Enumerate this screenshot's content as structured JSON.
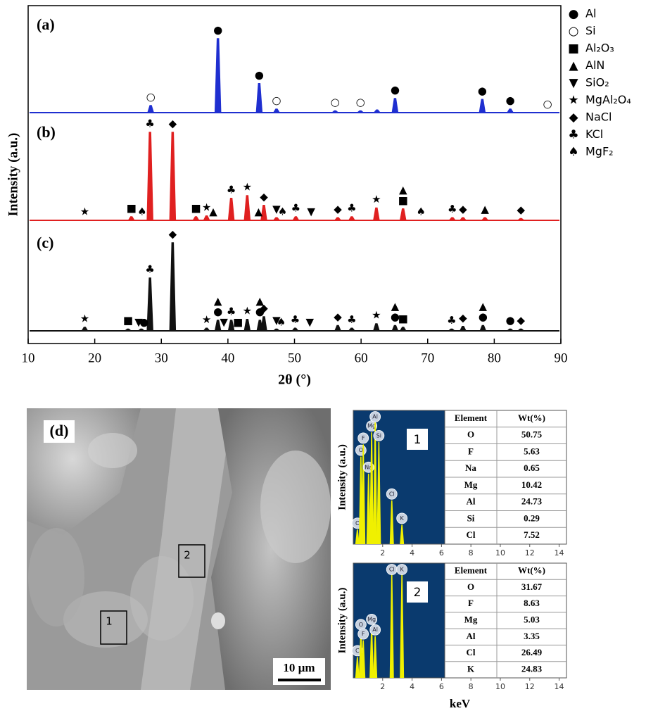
{
  "chart_data": [
    {
      "type": "line",
      "xlabel": "2θ (°)",
      "ylabel": "Intensity (a.u.)",
      "xlim": [
        10,
        90
      ],
      "xticks": [
        10,
        20,
        30,
        40,
        50,
        60,
        70,
        80,
        90
      ],
      "ylim": [
        0,
        100
      ],
      "legend": {
        "position": "right",
        "entries": [
          {
            "symbol": "●",
            "name": "Al"
          },
          {
            "symbol": "○",
            "name": "Si"
          },
          {
            "symbol": "■",
            "name": "Al₂O₃"
          },
          {
            "symbol": "▲",
            "name": "AlN"
          },
          {
            "symbol": "▼",
            "name": "SiO₂"
          },
          {
            "symbol": "★",
            "name": "MgAl₂O₄"
          },
          {
            "symbol": "◆",
            "name": "NaCl"
          },
          {
            "symbol": "♣",
            "name": "KCl"
          },
          {
            "symbol": "♠",
            "name": "MgF₂"
          }
        ]
      },
      "series": [
        {
          "name": "(a)",
          "color": "#1f2fd0",
          "x": [
            28.4,
            38.5,
            44.7,
            47.3,
            56.1,
            59.9,
            62.4,
            65.1,
            78.2,
            82.4
          ],
          "values": [
            8,
            84,
            33,
            4,
            2,
            2,
            3,
            16,
            15,
            4
          ],
          "annotations": [
            {
              "x": 28.4,
              "symbol": "○"
            },
            {
              "x": 38.5,
              "symbol": "●"
            },
            {
              "x": 44.7,
              "symbol": "●"
            },
            {
              "x": 47.3,
              "symbol": "○"
            },
            {
              "x": 56.1,
              "symbol": "○"
            },
            {
              "x": 59.9,
              "symbol": "○"
            },
            {
              "x": 65.1,
              "symbol": "●"
            },
            {
              "x": 78.2,
              "symbol": "●"
            },
            {
              "x": 82.4,
              "symbol": "●"
            },
            {
              "x": 88,
              "symbol": "○"
            }
          ]
        },
        {
          "name": "(b)",
          "color": "#e02020",
          "x": [
            25.5,
            28.3,
            31.7,
            35.2,
            36.8,
            40.5,
            42.9,
            45.4,
            47.3,
            50.2,
            56.5,
            58.6,
            62.3,
            66.3,
            73.7,
            75.3,
            78.6,
            84
          ],
          "values": [
            4,
            100,
            100,
            4,
            5,
            25,
            28,
            17,
            3,
            4,
            3,
            4,
            14,
            13,
            3,
            3,
            3,
            2
          ],
          "annotations": [
            {
              "x": 18.5,
              "symbol": "★"
            },
            {
              "x": 25.5,
              "symbol": "■"
            },
            {
              "x": 27.1,
              "symbol": "♠"
            },
            {
              "x": 28.3,
              "symbol": "♣"
            },
            {
              "x": 31.7,
              "symbol": "◆"
            },
            {
              "x": 35.2,
              "symbol": "■"
            },
            {
              "x": 36.8,
              "symbol": "★"
            },
            {
              "x": 37.8,
              "symbol": "▲"
            },
            {
              "x": 40.5,
              "symbol": "♣"
            },
            {
              "x": 42.9,
              "symbol": "★"
            },
            {
              "x": 44.6,
              "symbol": "▲"
            },
            {
              "x": 45.4,
              "symbol": "◆"
            },
            {
              "x": 47.3,
              "symbol": "▼"
            },
            {
              "x": 48.2,
              "symbol": "♠"
            },
            {
              "x": 50.2,
              "symbol": "♣"
            },
            {
              "x": 52.5,
              "symbol": "▼"
            },
            {
              "x": 56.5,
              "symbol": "◆"
            },
            {
              "x": 58.6,
              "symbol": "♣"
            },
            {
              "x": 62.3,
              "symbol": "★"
            },
            {
              "x": 66.3,
              "symbol": "■"
            },
            {
              "x": 66.3,
              "symbol": "▲"
            },
            {
              "x": 69,
              "symbol": "♠"
            },
            {
              "x": 73.7,
              "symbol": "♣"
            },
            {
              "x": 75.3,
              "symbol": "◆"
            },
            {
              "x": 78.6,
              "symbol": "▲"
            },
            {
              "x": 84,
              "symbol": "◆"
            }
          ]
        },
        {
          "name": "(c)",
          "color": "#111111",
          "x": [
            18.5,
            25,
            27,
            28.3,
            31.7,
            36.8,
            38.5,
            40.5,
            42.9,
            44.8,
            45.4,
            47.3,
            50.1,
            56.5,
            58.6,
            62.3,
            65.1,
            66.3,
            73.6,
            75.3,
            78.3,
            82.4,
            84
          ],
          "values": [
            4,
            2,
            2,
            60,
            100,
            3,
            12,
            12,
            13,
            12,
            16,
            2,
            3,
            6,
            3,
            8,
            6,
            4,
            2,
            5,
            6,
            2,
            2
          ],
          "annotations": [
            {
              "x": 18.5,
              "symbol": "★"
            },
            {
              "x": 25,
              "symbol": "■"
            },
            {
              "x": 26.6,
              "symbol": "▼"
            },
            {
              "x": 27.4,
              "symbol": "●"
            },
            {
              "x": 28.3,
              "symbol": "♣"
            },
            {
              "x": 31.7,
              "symbol": "◆"
            },
            {
              "x": 36.8,
              "symbol": "★"
            },
            {
              "x": 38.5,
              "symbol": "●"
            },
            {
              "x": 38.5,
              "symbol": "▲"
            },
            {
              "x": 39.4,
              "symbol": "▼"
            },
            {
              "x": 40.5,
              "symbol": "♣"
            },
            {
              "x": 41.5,
              "symbol": "■"
            },
            {
              "x": 42.9,
              "symbol": "★"
            },
            {
              "x": 44.8,
              "symbol": "●"
            },
            {
              "x": 44.8,
              "symbol": "▲"
            },
            {
              "x": 45.4,
              "symbol": "◆"
            },
            {
              "x": 47.3,
              "symbol": "▼"
            },
            {
              "x": 48,
              "symbol": "♠"
            },
            {
              "x": 50.1,
              "symbol": "♣"
            },
            {
              "x": 52.3,
              "symbol": "▼"
            },
            {
              "x": 56.5,
              "symbol": "◆"
            },
            {
              "x": 58.6,
              "symbol": "♣"
            },
            {
              "x": 62.3,
              "symbol": "★"
            },
            {
              "x": 65.1,
              "symbol": "●"
            },
            {
              "x": 65.1,
              "symbol": "▲"
            },
            {
              "x": 66.3,
              "symbol": "■"
            },
            {
              "x": 73.6,
              "symbol": "♣"
            },
            {
              "x": 75.3,
              "symbol": "◆"
            },
            {
              "x": 78.3,
              "symbol": "●"
            },
            {
              "x": 78.3,
              "symbol": "▲"
            },
            {
              "x": 82.4,
              "symbol": "●"
            },
            {
              "x": 84,
              "symbol": "◆"
            }
          ]
        }
      ]
    },
    {
      "type": "bar",
      "label": "1",
      "ylabel": "Intensity (a.u.)",
      "color": "#f0f000",
      "xlim": [
        0,
        14.5
      ],
      "xticks": [
        2,
        4,
        6,
        8,
        10,
        12,
        14
      ],
      "ylim": [
        0,
        110
      ],
      "categories": [
        "C",
        "O",
        "F",
        "Na",
        "Mg",
        "Al",
        "Si",
        "Cl",
        "K"
      ],
      "x": [
        0.28,
        0.52,
        0.68,
        1.04,
        1.25,
        1.49,
        1.74,
        2.62,
        3.31
      ],
      "values": [
        12,
        72,
        82,
        58,
        92,
        100,
        84,
        36,
        16
      ]
    },
    {
      "type": "bar",
      "label": "2",
      "ylabel": "Intensity (a.u.)",
      "xlabel": "keV",
      "color": "#f0f000",
      "xlim": [
        0,
        14.5
      ],
      "xticks": [
        2,
        4,
        6,
        8,
        10,
        12,
        14
      ],
      "ylim": [
        0,
        110
      ],
      "categories": [
        "C",
        "O",
        "F",
        "Mg",
        "Al",
        "Cl",
        "K"
      ],
      "x": [
        0.28,
        0.52,
        0.68,
        1.25,
        1.49,
        2.62,
        3.31
      ],
      "values": [
        20,
        45,
        36,
        50,
        40,
        100,
        100
      ]
    }
  ],
  "figure_d": {
    "label": "(d)",
    "regions": [
      "1",
      "2"
    ],
    "scale_bar": "10 µm"
  },
  "eds_tables": [
    {
      "header": [
        "Element",
        "Wt(%)"
      ],
      "rows": [
        [
          "O",
          50.75
        ],
        [
          "F",
          5.63
        ],
        [
          "Na",
          0.65
        ],
        [
          "Mg",
          10.42
        ],
        [
          "Al",
          24.73
        ],
        [
          "Si",
          0.29
        ],
        [
          "Cl",
          7.52
        ]
      ]
    },
    {
      "header": [
        "Element",
        "Wt(%)"
      ],
      "rows": [
        [
          "O",
          31.67
        ],
        [
          "F",
          8.63
        ],
        [
          "Mg",
          5.03
        ],
        [
          "Al",
          3.35
        ],
        [
          "Cl",
          26.49
        ],
        [
          "K",
          24.83
        ]
      ]
    }
  ]
}
